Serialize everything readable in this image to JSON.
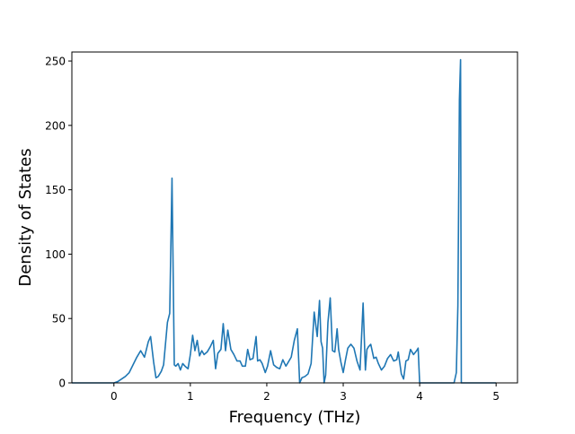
{
  "chart_data": {
    "type": "line",
    "title": "",
    "xlabel": "Frequency (THz)",
    "ylabel": "Density of States",
    "xlim": [
      -0.55,
      5.28
    ],
    "ylim": [
      0,
      257
    ],
    "xticks": [
      0,
      1,
      2,
      3,
      4,
      5
    ],
    "yticks": [
      0,
      50,
      100,
      150,
      200,
      250
    ],
    "grid": false,
    "legend": "none",
    "series": [
      {
        "color": "#1f77b4",
        "x": [
          -0.55,
          -0.3,
          -0.1,
          0.0,
          0.05,
          0.1,
          0.15,
          0.2,
          0.25,
          0.3,
          0.35,
          0.4,
          0.45,
          0.48,
          0.52,
          0.55,
          0.58,
          0.62,
          0.65,
          0.7,
          0.73,
          0.76,
          0.79,
          0.81,
          0.84,
          0.87,
          0.9,
          0.93,
          0.97,
          1.0,
          1.03,
          1.06,
          1.09,
          1.12,
          1.15,
          1.18,
          1.22,
          1.26,
          1.3,
          1.33,
          1.36,
          1.4,
          1.43,
          1.46,
          1.49,
          1.53,
          1.57,
          1.61,
          1.65,
          1.68,
          1.72,
          1.75,
          1.78,
          1.82,
          1.86,
          1.88,
          1.91,
          1.94,
          1.98,
          2.01,
          2.05,
          2.09,
          2.13,
          2.17,
          2.21,
          2.25,
          2.28,
          2.32,
          2.36,
          2.4,
          2.43,
          2.46,
          2.5,
          2.54,
          2.58,
          2.62,
          2.66,
          2.69,
          2.71,
          2.73,
          2.75,
          2.77,
          2.8,
          2.83,
          2.86,
          2.89,
          2.92,
          2.94,
          2.97,
          3.0,
          3.03,
          3.06,
          3.1,
          3.14,
          3.18,
          3.22,
          3.26,
          3.29,
          3.31,
          3.33,
          3.36,
          3.4,
          3.43,
          3.46,
          3.5,
          3.54,
          3.58,
          3.62,
          3.66,
          3.7,
          3.72,
          3.76,
          3.79,
          3.82,
          3.85,
          3.88,
          3.92,
          3.96,
          3.98,
          4.0,
          4.02,
          4.1,
          4.3,
          4.42,
          4.45,
          4.48,
          4.5,
          4.52,
          4.535,
          4.545,
          4.6,
          4.8,
          5.0
        ],
        "y": [
          0,
          0,
          0,
          0,
          1,
          3,
          5,
          8,
          14,
          20,
          25,
          20,
          32,
          36,
          16,
          4,
          5,
          9,
          14,
          47,
          54,
          159,
          14,
          13,
          15,
          10,
          15,
          13,
          11,
          22,
          37,
          25,
          33,
          21,
          25,
          22,
          24,
          28,
          33,
          11,
          23,
          26,
          46,
          25,
          41,
          26,
          22,
          17,
          17,
          13,
          13,
          26,
          18,
          19,
          36,
          17,
          18,
          15,
          8,
          13,
          25,
          14,
          12,
          11,
          18,
          13,
          16,
          20,
          33,
          42,
          0,
          4,
          5,
          7,
          15,
          55,
          36,
          64,
          32,
          27,
          0,
          6,
          47,
          66,
          25,
          24,
          42,
          26,
          16,
          8,
          18,
          27,
          30,
          27,
          17,
          10,
          62,
          10,
          26,
          28,
          30,
          19,
          20,
          15,
          10,
          13,
          19,
          22,
          17,
          18,
          24,
          7,
          3,
          17,
          18,
          26,
          22,
          25,
          27,
          0,
          0,
          0,
          0,
          0,
          0,
          8,
          60,
          220,
          251,
          0,
          0,
          0,
          0
        ]
      }
    ]
  }
}
